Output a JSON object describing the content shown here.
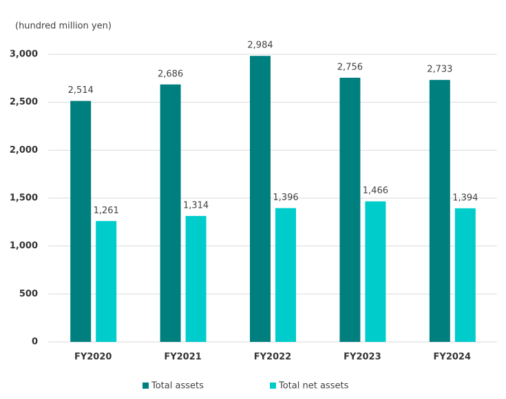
{
  "chart_data": {
    "type": "bar",
    "y_label": "(hundred million yen)",
    "categories": [
      "FY2020",
      "FY2021",
      "FY2022",
      "FY2023",
      "FY2024"
    ],
    "series": [
      {
        "name": "Total assets",
        "color": "#007f7f",
        "values": [
          2514,
          2686,
          2984,
          2756,
          2733
        ],
        "value_labels": [
          "2,514",
          "2,686",
          "2,984",
          "2,756",
          "2,733"
        ]
      },
      {
        "name": "Total net assets",
        "color": "#00cccc",
        "values": [
          1261,
          1314,
          1396,
          1466,
          1394
        ],
        "value_labels": [
          "1,261",
          "1,314",
          "1,396",
          "1,466",
          "1,394"
        ]
      }
    ],
    "ylim": [
      0,
      3000
    ],
    "yticks": [
      0,
      500,
      {
        "value": 1000,
        "label": "1,000"
      },
      {
        "value": 1500,
        "label": "1,500"
      },
      {
        "value": 2000,
        "label": "2,000"
      },
      {
        "value": 2500,
        "label": "2,500"
      },
      {
        "value": 3000,
        "label": "3,000"
      }
    ],
    "grid": true,
    "legend": "bottom"
  }
}
